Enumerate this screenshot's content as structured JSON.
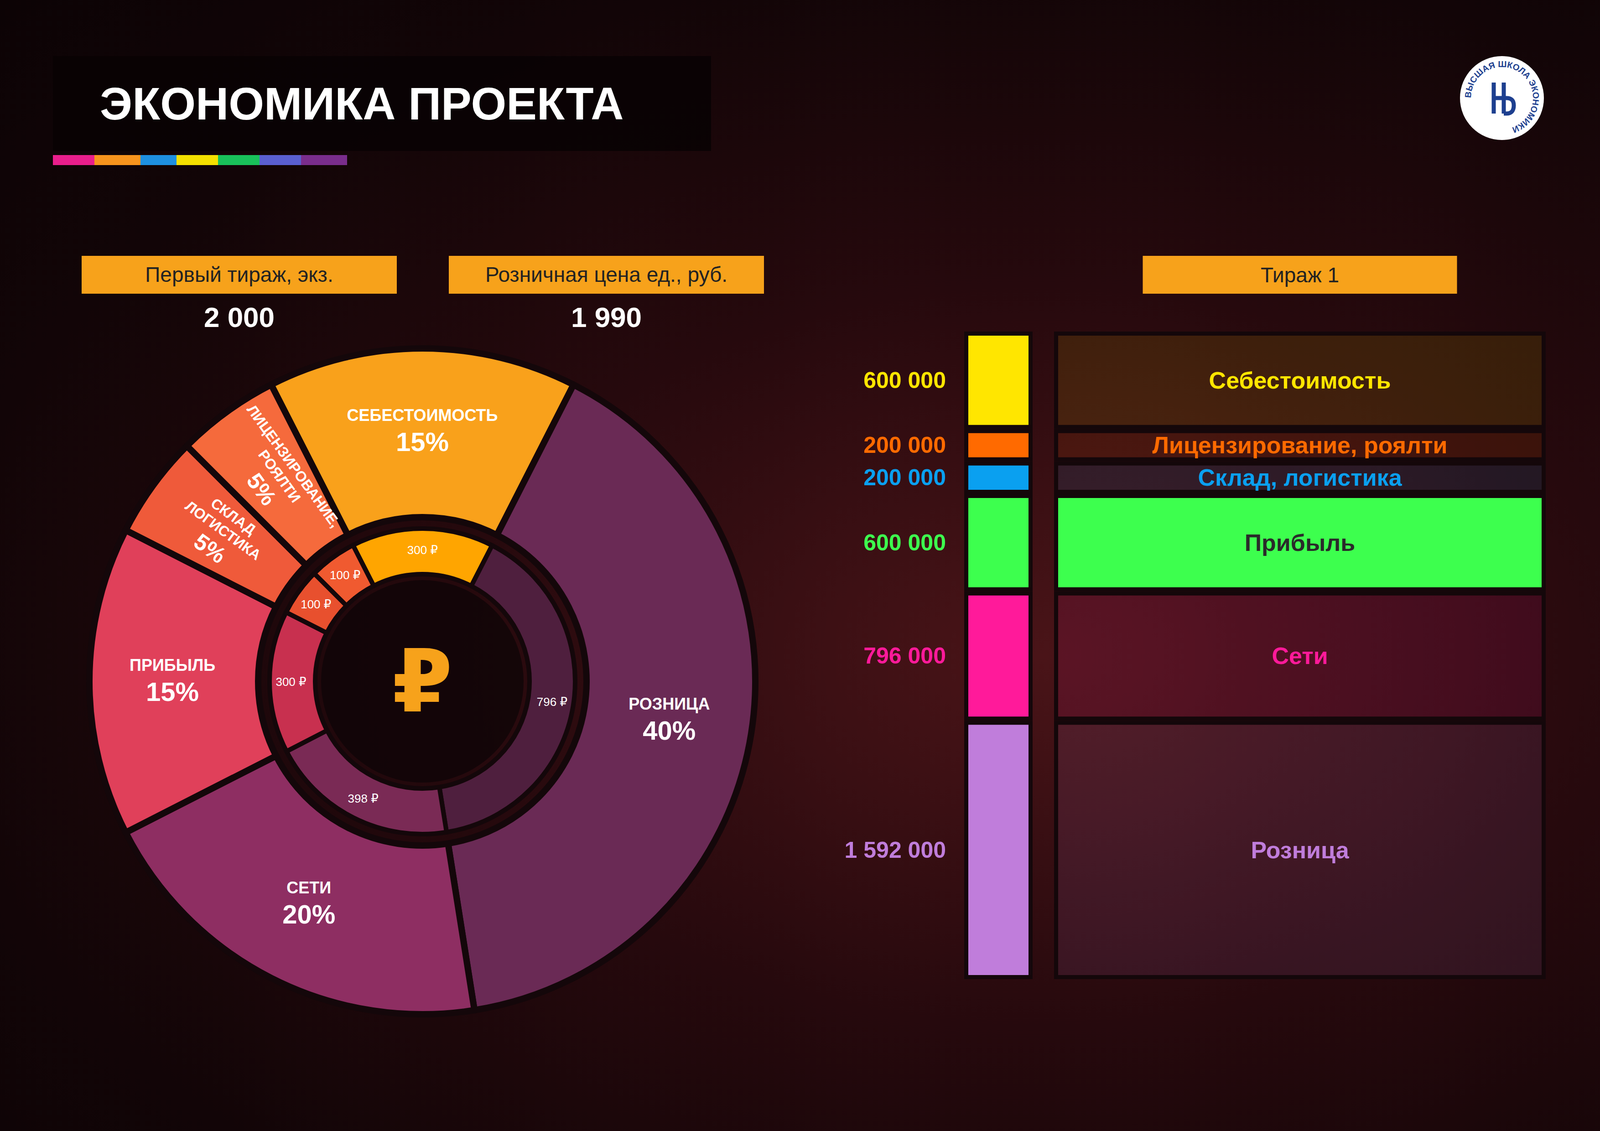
{
  "title": "ЭКОНОМИКА ПРОЕКТА",
  "logo": "ВЫСШАЯ ШКОЛА ЭКОНОМИКИ",
  "stats": [
    {
      "label": "Первый тираж, экз.",
      "value": 2000,
      "value_label": "2 000"
    },
    {
      "label": "Розничная цена ед., руб.",
      "value": 1990,
      "value_label": "1 990"
    }
  ],
  "chart_data": [
    {
      "type": "pie",
      "categories": [
        "СЕБЕСТОИМОСТЬ",
        "РОЗНИЦА",
        "СЕТИ",
        "ПРИБЫЛЬ",
        "СКЛАД ЛОГИСТИКА",
        "ЛИЦЕНЗИРОВАНИЕ, РОЯЛТИ"
      ],
      "values": [
        15,
        40,
        20,
        15,
        5,
        5
      ],
      "value_labels": [
        "15%",
        "40%",
        "20%",
        "15%",
        "5%",
        "5%"
      ],
      "colors": [
        "#f9a11b",
        "#6a2a55",
        "#8e2e62",
        "#e0405a",
        "#ef5a3a",
        "#f56a3c"
      ],
      "data_labels": true
    },
    {
      "type": "pie",
      "values": [
        300,
        796,
        398,
        300,
        100,
        100
      ],
      "value_labels": [
        "300 ₽",
        "796 ₽",
        "398 ₽",
        "300 ₽",
        "100 ₽",
        "100 ₽"
      ],
      "colors": [
        "#ffa500",
        "#4f1f3e",
        "#7a2a55",
        "#c8304f",
        "#e8502e",
        "#f05a30"
      ],
      "data_labels": true,
      "center_label": "₽"
    },
    {
      "type": "bar",
      "stacked": true,
      "categories": [
        "Тираж 1"
      ],
      "ylim": [
        0,
        3988000
      ],
      "tick_labels": false,
      "data_labels": true,
      "series": [
        {
          "name": "Себестоимость",
          "color": "#ffe600",
          "values": [
            600000
          ],
          "value_labels": [
            "600 000"
          ]
        },
        {
          "name": "Лицензирование, роялти",
          "color": "#ff6a00",
          "values": [
            200000
          ],
          "value_labels": [
            "200 000"
          ]
        },
        {
          "name": "Склад, логистика",
          "color": "#0aa0f0",
          "values": [
            200000
          ],
          "value_labels": [
            "200 000"
          ]
        },
        {
          "name": "Прибыль",
          "color": "#3dff4e",
          "values": [
            600000
          ],
          "value_labels": [
            "600 000"
          ]
        },
        {
          "name": "Сети",
          "color": "#ff1a9a",
          "values": [
            796000
          ],
          "value_labels": [
            "796 000"
          ]
        },
        {
          "name": "Розница",
          "color": "#c07ddb",
          "values": [
            1592000
          ],
          "value_labels": [
            "1 592 000"
          ]
        }
      ]
    }
  ]
}
